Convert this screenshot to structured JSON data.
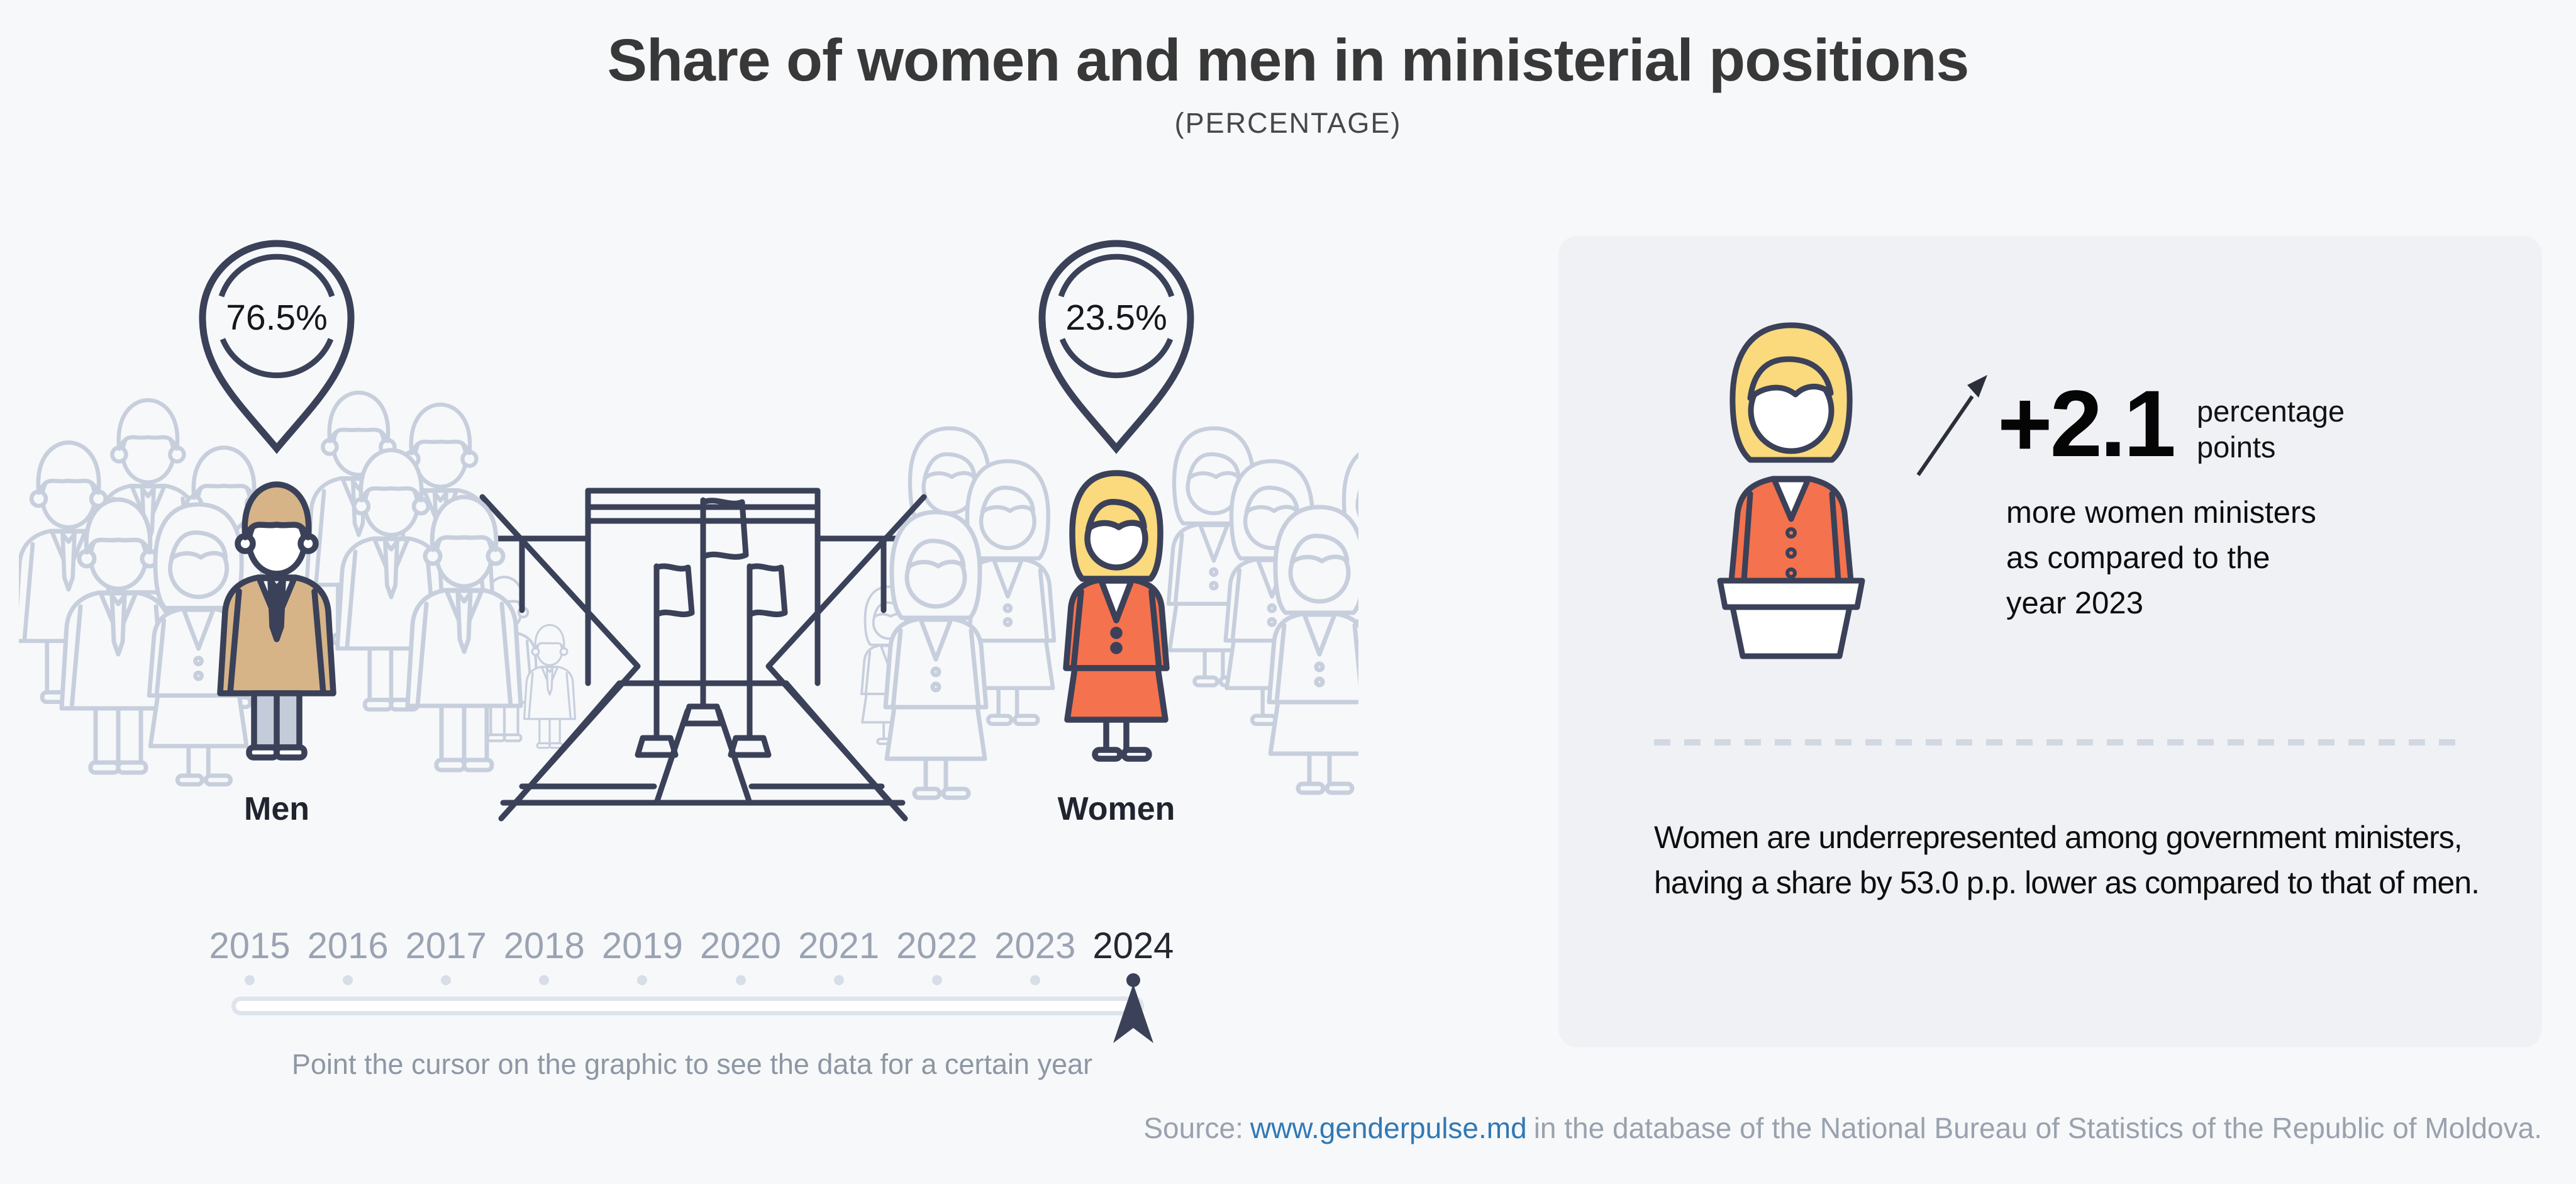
{
  "header": {
    "title": "Share of women and men in ministerial positions",
    "subtitle": "(PERCENTAGE)"
  },
  "scene": {
    "men": {
      "label": "Men",
      "value": "76.5%"
    },
    "women": {
      "label": "Women",
      "value": "23.5%"
    }
  },
  "timeline": {
    "years": [
      "2015",
      "2016",
      "2017",
      "2018",
      "2019",
      "2020",
      "2021",
      "2022",
      "2023",
      "2024"
    ],
    "selected": "2024",
    "hint": "Point the cursor on the graphic to see the data for a certain year"
  },
  "panel": {
    "delta": "+2.1",
    "delta_unit": "percentage points",
    "description": "more women ministers as compared to the year 2023",
    "note": "Women are underrepresented among government ministers, having a share by 53.0 p.p. lower as compared to that of men."
  },
  "footer": {
    "prefix": "Source:",
    "link": "www.genderpulse.md",
    "suffix": "in the database of the National Bureau of Statistics of the Republic of Moldova."
  },
  "chart_data": {
    "type": "bar",
    "title": "Share of women and men in ministerial positions",
    "subtitle": "(PERCENTAGE)",
    "categories": [
      "Men",
      "Women"
    ],
    "values": [
      76.5,
      23.5
    ],
    "unit": "%",
    "year_shown": "2024",
    "timeline_years": [
      "2015",
      "2016",
      "2017",
      "2018",
      "2019",
      "2020",
      "2021",
      "2022",
      "2023",
      "2024"
    ],
    "change_from_previous_year_pp": 2.1,
    "gender_gap_pp": 53.0,
    "annotations": [
      "+2.1 percentage points more women ministers as compared to the year 2023",
      "Women are underrepresented among government ministers, having a share by 53.0 p.p. lower as compared to that of men."
    ],
    "legend_position": "none",
    "grid": false
  },
  "colors": {
    "page_bg": "#f7f8fa",
    "panel_bg": "#eff1f5",
    "outline_navy": "#3a4158",
    "crowd_gray": "#c7cfdd",
    "accent_tan": "#d6b488",
    "accent_orange": "#f4724d",
    "blonde": "#fbd97d",
    "link_blue": "#3079b5"
  }
}
